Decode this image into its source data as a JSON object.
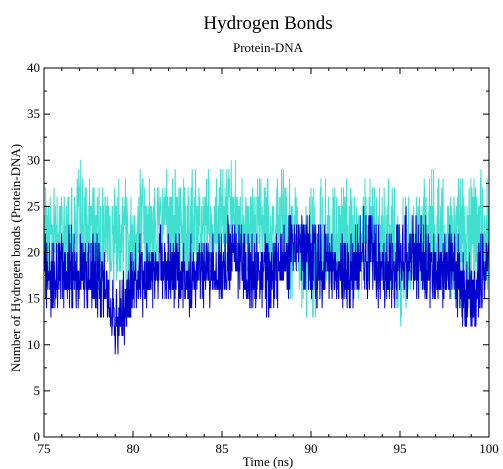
{
  "chart_data": {
    "type": "line",
    "title": "Hydrogen Bonds",
    "subtitle": "Protein-DNA",
    "xlabel": "Time (ns)",
    "ylabel": "Number of Hydrogen bonds (Protein-DNA)",
    "xlim": [
      75,
      100
    ],
    "ylim": [
      0,
      40
    ],
    "xticks": [
      75,
      80,
      85,
      90,
      95,
      100
    ],
    "yticks": [
      0,
      5,
      10,
      15,
      20,
      25,
      30,
      35,
      40
    ],
    "grid": false,
    "legend": "none",
    "colors": [
      "#40e0d0",
      "#0000cd"
    ],
    "series": [
      {
        "color": "#40e0d0",
        "x": [
          75,
          75.5,
          76,
          76.5,
          77,
          77.5,
          78,
          78.5,
          79,
          79.5,
          80,
          80.5,
          81,
          81.5,
          82,
          82.5,
          83,
          83.5,
          84,
          84.5,
          85,
          85.5,
          86,
          86.5,
          87,
          87.5,
          88,
          88.5,
          89,
          89.5,
          90,
          90.5,
          91,
          91.5,
          92,
          92.5,
          93,
          93.5,
          94,
          94.5,
          95,
          95.5,
          96,
          96.5,
          97,
          97.5,
          98,
          98.5,
          99,
          99.5,
          100
        ],
        "y": [
          21,
          23,
          22,
          22,
          24,
          22,
          23,
          21,
          22,
          23,
          22,
          23,
          22,
          24,
          23,
          23,
          22,
          24,
          23,
          22,
          24,
          24,
          23,
          22,
          23,
          22,
          22,
          23,
          22,
          20,
          20,
          21,
          22,
          22,
          22,
          20,
          22,
          22,
          21,
          22,
          19,
          20,
          21,
          22,
          22,
          22,
          22,
          21,
          23,
          22,
          22
        ],
        "y_min": [
          15,
          16,
          16,
          16,
          17,
          16,
          16,
          15,
          16,
          16,
          15,
          16,
          16,
          17,
          17,
          16,
          15,
          17,
          16,
          16,
          17,
          18,
          17,
          16,
          16,
          16,
          15,
          16,
          15,
          13,
          12,
          14,
          15,
          15,
          16,
          14,
          15,
          16,
          15,
          16,
          12,
          13,
          14,
          15,
          16,
          15,
          15,
          14,
          15,
          16,
          16
        ],
        "y_max": [
          27,
          28,
          27,
          27,
          30,
          28,
          29,
          27,
          28,
          29,
          28,
          29,
          28,
          30,
          29,
          29,
          28,
          30,
          29,
          28,
          30,
          31,
          29,
          28,
          29,
          28,
          28,
          30,
          28,
          26,
          27,
          28,
          29,
          28,
          28,
          27,
          28,
          29,
          27,
          28,
          26,
          27,
          28,
          29,
          29,
          28,
          28,
          28,
          29,
          29,
          28
        ]
      },
      {
        "color": "#0000cd",
        "x": [
          75,
          75.5,
          76,
          76.5,
          77,
          77.5,
          78,
          78.5,
          79,
          79.5,
          80,
          80.5,
          81,
          81.5,
          82,
          82.5,
          83,
          83.5,
          84,
          84.5,
          85,
          85.5,
          86,
          86.5,
          87,
          87.5,
          88,
          88.5,
          89,
          89.5,
          90,
          90.5,
          91,
          91.5,
          92,
          92.5,
          93,
          93.5,
          94,
          94.5,
          95,
          95.5,
          96,
          96.5,
          97,
          97.5,
          98,
          98.5,
          99,
          99.5,
          100
        ],
        "y": [
          18,
          17,
          18,
          18,
          18,
          18,
          17,
          16,
          12,
          14,
          17,
          17,
          18,
          19,
          18,
          18,
          17,
          18,
          18,
          18,
          18,
          19,
          19,
          18,
          18,
          18,
          18,
          19,
          21,
          21,
          19,
          18,
          19,
          17,
          18,
          18,
          20,
          19,
          18,
          18,
          19,
          20,
          19,
          19,
          18,
          18,
          18,
          17,
          15,
          18,
          19
        ],
        "y_min": [
          14,
          13,
          14,
          14,
          14,
          14,
          13,
          12,
          9,
          10,
          13,
          13,
          14,
          15,
          14,
          14,
          13,
          14,
          14,
          14,
          14,
          15,
          15,
          14,
          14,
          13,
          14,
          15,
          16,
          16,
          14,
          13,
          15,
          13,
          14,
          14,
          15,
          15,
          14,
          14,
          14,
          15,
          15,
          14,
          14,
          14,
          13,
          12,
          11,
          13,
          15
        ],
        "y_max": [
          22,
          21,
          22,
          23,
          22,
          22,
          22,
          21,
          16,
          19,
          21,
          22,
          22,
          23,
          22,
          22,
          21,
          23,
          22,
          22,
          23,
          24,
          23,
          22,
          22,
          22,
          22,
          23,
          25,
          25,
          24,
          23,
          23,
          22,
          23,
          23,
          25,
          24,
          22,
          23,
          24,
          25,
          24,
          24,
          23,
          23,
          23,
          22,
          20,
          22,
          23
        ]
      }
    ]
  }
}
